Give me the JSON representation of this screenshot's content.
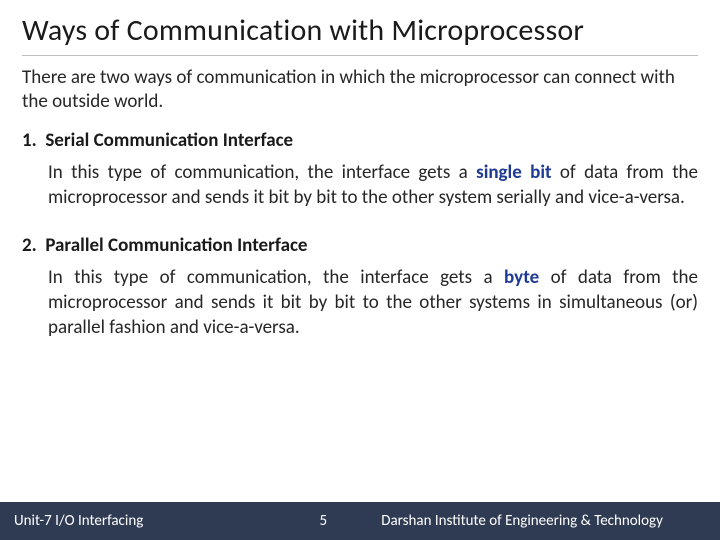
{
  "title": "Ways of Communication with Microprocessor",
  "intro": "There are two ways of communication in which the microprocessor can connect with the outside world.",
  "items": [
    {
      "num": "1.",
      "heading": "Serial Communication Interface",
      "body_before": "In this type of communication, the interface gets a ",
      "highlight": "single bit",
      "body_after": " of data from the microprocessor and sends it bit by bit to the other system serially and vice-a-versa."
    },
    {
      "num": "2.",
      "heading": "Parallel Communication Interface",
      "body_before": "In this type of communication, the interface gets a ",
      "highlight": "byte",
      "body_after": " of data from the microprocessor and sends it bit by bit to the other systems in simultaneous (or) parallel fashion and vice-a-versa."
    }
  ],
  "footer": {
    "left": "Unit-7 I/O Interfacing",
    "page": "5",
    "right": "Darshan Institute of Engineering & Technology"
  },
  "colors": {
    "highlight": "#1f3a93",
    "footer_bg": "#2f3b52",
    "footer_fg": "#ffffff",
    "rule": "#bfbfbf",
    "text": "#262626"
  },
  "typography": {
    "title_fontsize": 30,
    "body_fontsize": 19,
    "footer_fontsize": 15
  }
}
